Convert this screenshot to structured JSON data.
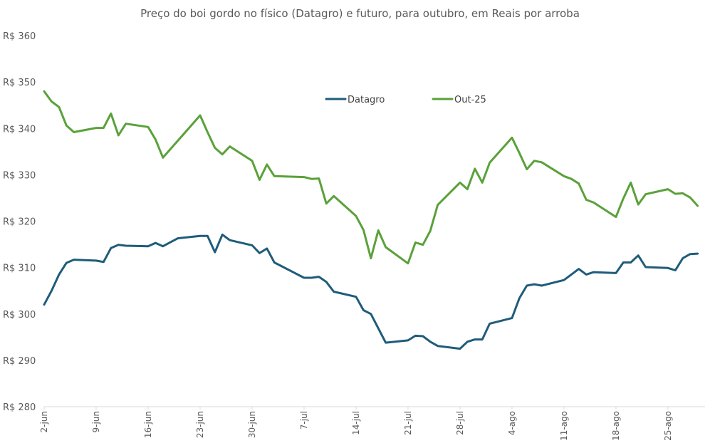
{
  "chart_data": {
    "type": "line",
    "title": "Preço do boi gordo no físico (Datagro) e futuro, para outubro, em Reais por arroba",
    "ylim": [
      280,
      360
    ],
    "yticks": [
      280,
      290,
      300,
      310,
      320,
      330,
      340,
      350,
      360
    ],
    "ytick_labels": [
      "R$ 280",
      "R$ 290",
      "R$ 300",
      "R$ 310",
      "R$ 320",
      "R$ 330",
      "R$ 340",
      "R$ 350",
      "R$ 360"
    ],
    "xlim": [
      0,
      89
    ],
    "x_tick_positions": [
      0,
      7,
      14,
      21,
      28,
      35,
      42,
      49,
      56,
      63,
      70,
      77,
      84
    ],
    "x_tick_labels": [
      "2-jun",
      "9-jun",
      "16-jun",
      "23-jun",
      "30-jun",
      "7-jul",
      "14-jul",
      "21-jul",
      "28-jul",
      "4-ago",
      "11-ago",
      "18-ago",
      "25-ago"
    ],
    "grid": false,
    "legend": "top-center",
    "series": [
      {
        "name": "Datagro",
        "color": "#1f5c7a",
        "points": [
          [
            0,
            302.0
          ],
          [
            1,
            305.0
          ],
          [
            2,
            308.5
          ],
          [
            3,
            311.0
          ],
          [
            4,
            311.7
          ],
          [
            7,
            311.5
          ],
          [
            8,
            311.2
          ],
          [
            9,
            314.2
          ],
          [
            10,
            314.9
          ],
          [
            11,
            314.7
          ],
          [
            14,
            314.6
          ],
          [
            15,
            315.3
          ],
          [
            16,
            314.6
          ],
          [
            18,
            316.3
          ],
          [
            21,
            316.8
          ],
          [
            22,
            316.8
          ],
          [
            23,
            313.3
          ],
          [
            24,
            317.1
          ],
          [
            25,
            315.9
          ],
          [
            28,
            314.8
          ],
          [
            29,
            313.1
          ],
          [
            30,
            314.1
          ],
          [
            31,
            311.1
          ],
          [
            35,
            307.8
          ],
          [
            36,
            307.8
          ],
          [
            37,
            308.0
          ],
          [
            38,
            306.9
          ],
          [
            39,
            304.8
          ],
          [
            42,
            303.7
          ],
          [
            43,
            300.8
          ],
          [
            44,
            300.0
          ],
          [
            46,
            293.8
          ],
          [
            49,
            294.3
          ],
          [
            50,
            295.3
          ],
          [
            51,
            295.2
          ],
          [
            52,
            294.0
          ],
          [
            53,
            293.1
          ],
          [
            56,
            292.5
          ],
          [
            57,
            294.0
          ],
          [
            58,
            294.5
          ],
          [
            59,
            294.5
          ],
          [
            60,
            297.9
          ],
          [
            63,
            299.1
          ],
          [
            64,
            303.4
          ],
          [
            65,
            306.1
          ],
          [
            66,
            306.4
          ],
          [
            67,
            306.1
          ],
          [
            70,
            307.3
          ],
          [
            71,
            308.5
          ],
          [
            72,
            309.7
          ],
          [
            73,
            308.5
          ],
          [
            74,
            309.0
          ],
          [
            77,
            308.8
          ],
          [
            78,
            311.1
          ],
          [
            79,
            311.1
          ],
          [
            80,
            312.6
          ],
          [
            81,
            310.1
          ],
          [
            84,
            309.9
          ],
          [
            85,
            309.4
          ],
          [
            86,
            312.0
          ],
          [
            87,
            312.9
          ],
          [
            88,
            313.0
          ]
        ]
      },
      {
        "name": "Out-25",
        "color": "#5aa13a",
        "points": [
          [
            0,
            348.0
          ],
          [
            1,
            345.8
          ],
          [
            2,
            344.6
          ],
          [
            3,
            340.6
          ],
          [
            4,
            339.2
          ],
          [
            7,
            340.1
          ],
          [
            8,
            340.1
          ],
          [
            9,
            343.2
          ],
          [
            10,
            338.5
          ],
          [
            11,
            341.0
          ],
          [
            14,
            340.3
          ],
          [
            15,
            337.6
          ],
          [
            16,
            333.7
          ],
          [
            21,
            342.8
          ],
          [
            22,
            339.2
          ],
          [
            23,
            335.8
          ],
          [
            24,
            334.4
          ],
          [
            25,
            336.1
          ],
          [
            28,
            333.0
          ],
          [
            29,
            328.9
          ],
          [
            30,
            332.2
          ],
          [
            31,
            329.7
          ],
          [
            35,
            329.5
          ],
          [
            36,
            329.1
          ],
          [
            37,
            329.2
          ],
          [
            38,
            323.8
          ],
          [
            39,
            325.4
          ],
          [
            42,
            321.1
          ],
          [
            43,
            318.1
          ],
          [
            44,
            312.0
          ],
          [
            45,
            318.0
          ],
          [
            46,
            314.4
          ],
          [
            49,
            310.9
          ],
          [
            50,
            315.4
          ],
          [
            51,
            314.9
          ],
          [
            52,
            317.9
          ],
          [
            53,
            323.5
          ],
          [
            56,
            328.3
          ],
          [
            57,
            326.9
          ],
          [
            58,
            331.3
          ],
          [
            59,
            328.3
          ],
          [
            60,
            332.6
          ],
          [
            63,
            338.0
          ],
          [
            64,
            334.7
          ],
          [
            65,
            331.2
          ],
          [
            66,
            333.0
          ],
          [
            67,
            332.7
          ],
          [
            70,
            329.7
          ],
          [
            71,
            329.1
          ],
          [
            72,
            328.1
          ],
          [
            73,
            324.6
          ],
          [
            74,
            324.0
          ],
          [
            77,
            320.9
          ],
          [
            78,
            324.9
          ],
          [
            79,
            328.3
          ],
          [
            80,
            323.6
          ],
          [
            81,
            325.8
          ],
          [
            84,
            326.9
          ],
          [
            85,
            325.9
          ],
          [
            86,
            326.0
          ],
          [
            87,
            325.1
          ],
          [
            88,
            323.3
          ]
        ]
      }
    ]
  }
}
